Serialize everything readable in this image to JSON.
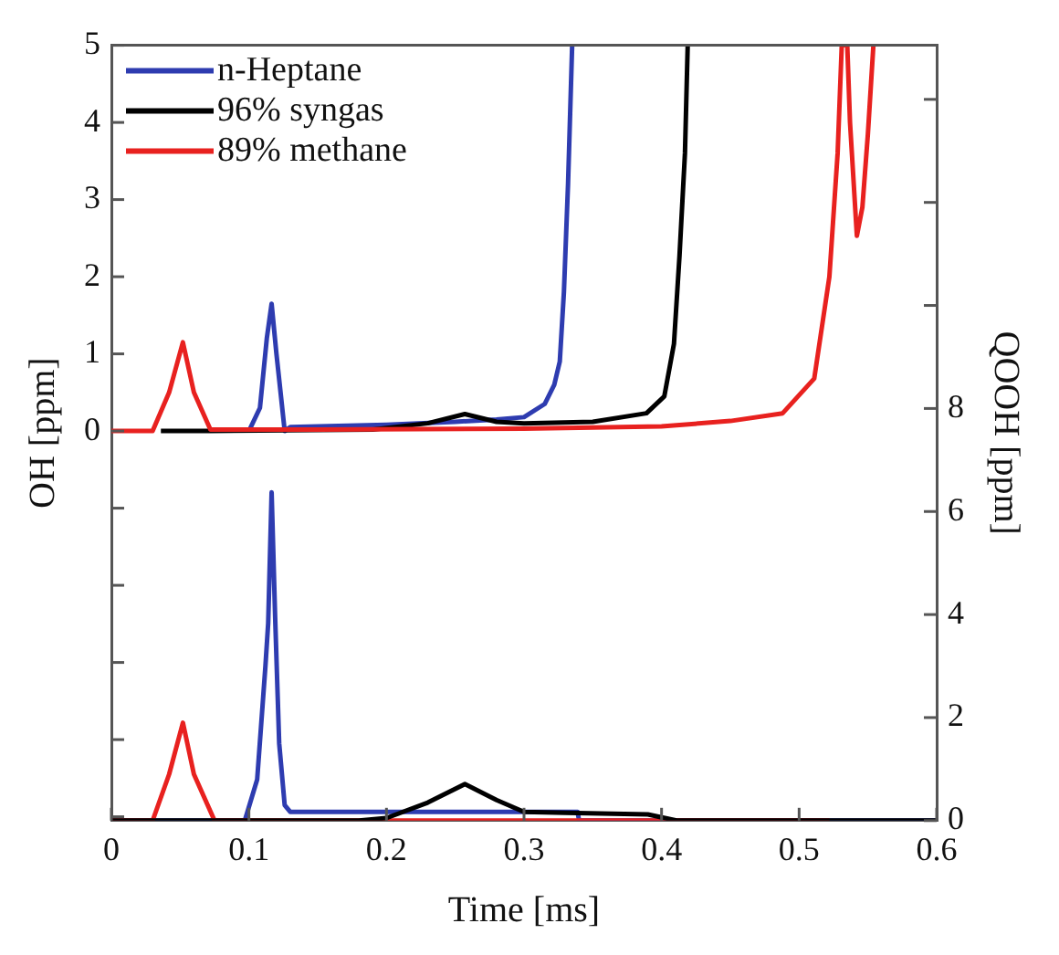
{
  "chart_data": {
    "type": "line",
    "xlabel": "Time [ms]",
    "ylabel": "OH [ppm]",
    "y2label": "QOOH [ppm]",
    "xlim": [
      0,
      0.6
    ],
    "xticks": [
      0,
      0.1,
      0.2,
      0.3,
      0.4,
      0.5,
      0.6
    ],
    "ylim": [
      -5.05,
      5
    ],
    "yticks": [
      {
        "value": -5,
        "label": null
      },
      {
        "value": -4,
        "label": null
      },
      {
        "value": -3,
        "label": null
      },
      {
        "value": -2,
        "label": null
      },
      {
        "value": -1,
        "label": null
      },
      0,
      1,
      2,
      3,
      4,
      5
    ],
    "y2lim": [
      0,
      15.05
    ],
    "y2ticks": [
      0,
      2,
      4,
      6,
      8,
      {
        "value": 10,
        "label": null
      },
      {
        "value": 12,
        "label": null
      },
      {
        "value": 14,
        "label": null
      }
    ],
    "grid": false,
    "legend": "top left",
    "line_style": "solid",
    "marker": "none",
    "series": [
      {
        "name": "n-Heptane",
        "color": "#2e3cb0",
        "x": [
          0.1,
          0.108,
          0.113,
          0.1165,
          0.12,
          0.126,
          0.13,
          0.2,
          0.25,
          0.28,
          0.3,
          0.315,
          0.322,
          0.326,
          0.329,
          0.332,
          0.335
        ],
        "values": [
          0,
          0.3,
          1.2,
          1.65,
          1.0,
          0,
          0.05,
          0.08,
          0.12,
          0.15,
          0.18,
          0.35,
          0.6,
          0.9,
          1.8,
          3.2,
          5
        ]
      },
      {
        "name": "96% syngas",
        "color": "#000000",
        "x": [
          0.036,
          0.072,
          0.19,
          0.23,
          0.257,
          0.28,
          0.3,
          0.35,
          0.389,
          0.402,
          0.409,
          0.413,
          0.417,
          0.419
        ],
        "values": [
          0,
          0,
          0.02,
          0.1,
          0.22,
          0.12,
          0.1,
          0.12,
          0.23,
          0.45,
          1.13,
          2.26,
          3.6,
          5
        ]
      },
      {
        "name": "89% methane",
        "color": "#e8211f",
        "x": [
          0,
          0.03,
          0.042,
          0.052,
          0.06,
          0.072,
          0.15,
          0.3,
          0.4,
          0.45,
          0.488,
          0.511,
          0.522,
          0.528,
          0.531,
          0.535,
          0.537,
          0.542,
          0.546,
          0.55,
          0.554
        ],
        "values": [
          0,
          0,
          0.5,
          1.15,
          0.5,
          0.02,
          0.02,
          0.03,
          0.06,
          0.13,
          0.23,
          0.68,
          2.0,
          3.6,
          5,
          5,
          4.0,
          2.53,
          2.9,
          3.85,
          5
        ]
      },
      {
        "color": "#2e3cb0",
        "axis": "y2",
        "x": [
          0,
          0.097,
          0.106,
          0.112,
          0.114,
          0.1165,
          0.119,
          0.122,
          0.126,
          0.13,
          0.2,
          0.3,
          0.339,
          0.34,
          0.6
        ],
        "values": [
          0,
          0,
          0.8,
          3.0,
          3.83,
          6.37,
          4.0,
          1.5,
          0.3,
          0.17,
          0.17,
          0.17,
          0.17,
          0,
          0
        ]
      },
      {
        "color": "#e8211f",
        "axis": "y2",
        "x": [
          0,
          0.03,
          0.042,
          0.052,
          0.06,
          0.075,
          0.522
        ],
        "values": [
          0,
          0,
          0.9,
          1.9,
          0.9,
          0,
          0
        ]
      },
      {
        "color": "#000000",
        "axis": "y2",
        "x": [
          0,
          0.18,
          0.2,
          0.23,
          0.257,
          0.28,
          0.3,
          0.33,
          0.39,
          0.411,
          0.6
        ],
        "values": [
          0,
          0,
          0.05,
          0.35,
          0.71,
          0.4,
          0.17,
          0.15,
          0.12,
          0,
          0
        ]
      }
    ]
  }
}
